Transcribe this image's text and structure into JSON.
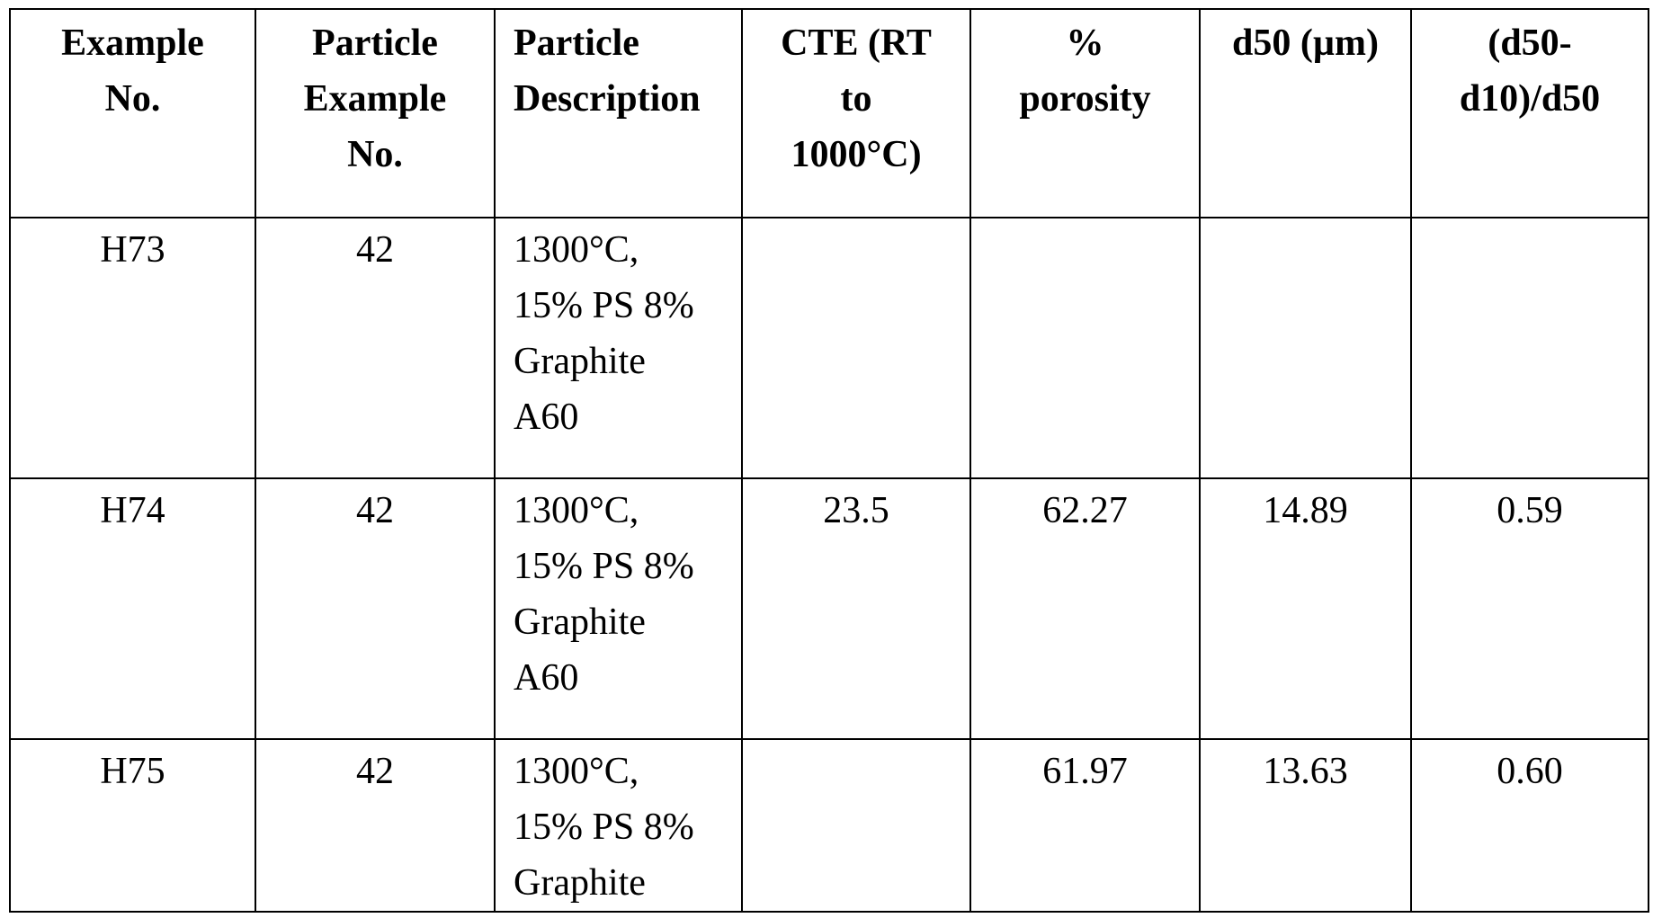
{
  "table": {
    "headers": {
      "example_no": [
        "Example",
        "No."
      ],
      "particle_example_no": [
        "Particle",
        "Example",
        "No."
      ],
      "particle_description": [
        "Particle",
        "Description"
      ],
      "cte": [
        "CTE (RT",
        "to",
        "1000°C)"
      ],
      "porosity": [
        "%",
        "porosity"
      ],
      "d50": [
        "d50 (µm)"
      ],
      "ratio": [
        "(d50-",
        "d10)/d50"
      ]
    },
    "rows": [
      {
        "example_no": "H73",
        "particle_example_no": "42",
        "description": [
          "1300°C,",
          "15% PS 8%",
          "Graphite",
          "A60"
        ],
        "cte": "",
        "porosity": "",
        "d50": "",
        "ratio": ""
      },
      {
        "example_no": "H74",
        "particle_example_no": "42",
        "description": [
          "1300°C,",
          "15% PS 8%",
          "Graphite",
          "A60"
        ],
        "cte": "23.5",
        "porosity": "62.27",
        "d50": "14.89",
        "ratio": "0.59"
      },
      {
        "example_no": "H75",
        "particle_example_no": "42",
        "description": [
          "1300°C,",
          "15% PS 8%",
          "Graphite"
        ],
        "cte": "",
        "porosity": "61.97",
        "d50": "13.63",
        "ratio": "0.60"
      }
    ]
  }
}
